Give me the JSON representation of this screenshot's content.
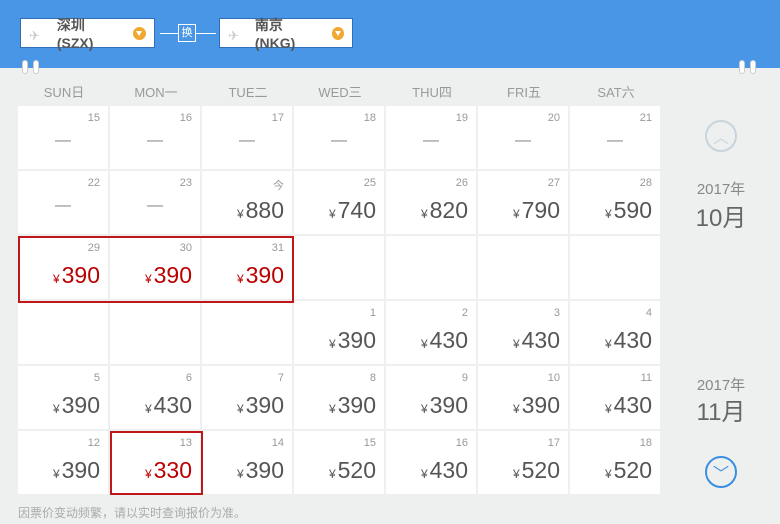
{
  "header": {
    "from": "深圳(SZX)",
    "to": "南京(NKG)",
    "swap_label": "换"
  },
  "weekdays": [
    "SUN日",
    "MON一",
    "TUE二",
    "WED三",
    "THU四",
    "FRI五",
    "SAT六"
  ],
  "currency": "¥",
  "rows": [
    [
      {
        "d": "15",
        "p": "—"
      },
      {
        "d": "16",
        "p": "—"
      },
      {
        "d": "17",
        "p": "—"
      },
      {
        "d": "18",
        "p": "—"
      },
      {
        "d": "19",
        "p": "—"
      },
      {
        "d": "20",
        "p": "—"
      },
      {
        "d": "21",
        "p": "—"
      }
    ],
    [
      {
        "d": "22",
        "p": "—"
      },
      {
        "d": "23",
        "p": "—"
      },
      {
        "d": "今",
        "p": "880"
      },
      {
        "d": "25",
        "p": "740"
      },
      {
        "d": "26",
        "p": "820"
      },
      {
        "d": "27",
        "p": "790"
      },
      {
        "d": "28",
        "p": "590"
      }
    ],
    [
      {
        "d": "29",
        "p": "390",
        "hl": true
      },
      {
        "d": "30",
        "p": "390",
        "hl": true
      },
      {
        "d": "31",
        "p": "390",
        "hl": true
      },
      null,
      null,
      null,
      null
    ],
    [
      null,
      null,
      null,
      {
        "d": "1",
        "p": "390"
      },
      {
        "d": "2",
        "p": "430"
      },
      {
        "d": "3",
        "p": "430"
      },
      {
        "d": "4",
        "p": "430"
      }
    ],
    [
      {
        "d": "5",
        "p": "390"
      },
      {
        "d": "6",
        "p": "430"
      },
      {
        "d": "7",
        "p": "390"
      },
      {
        "d": "8",
        "p": "390"
      },
      {
        "d": "9",
        "p": "390"
      },
      {
        "d": "10",
        "p": "390"
      },
      {
        "d": "11",
        "p": "430"
      }
    ],
    [
      {
        "d": "12",
        "p": "390"
      },
      {
        "d": "13",
        "p": "330",
        "hl": true
      },
      {
        "d": "14",
        "p": "390"
      },
      {
        "d": "15",
        "p": "520"
      },
      {
        "d": "16",
        "p": "430"
      },
      {
        "d": "17",
        "p": "520"
      },
      {
        "d": "18",
        "p": "520"
      }
    ]
  ],
  "months": [
    {
      "year": "2017年",
      "month": "10月"
    },
    {
      "year": "2017年",
      "month": "11月"
    }
  ],
  "footer": "因票价变动频繁，请以实时查询报价为准。",
  "colors": {
    "header": "#4a96e6",
    "highlight": "#c0171b",
    "arrow_up": "#c8d4dc",
    "arrow_down": "#3a8fe0"
  }
}
